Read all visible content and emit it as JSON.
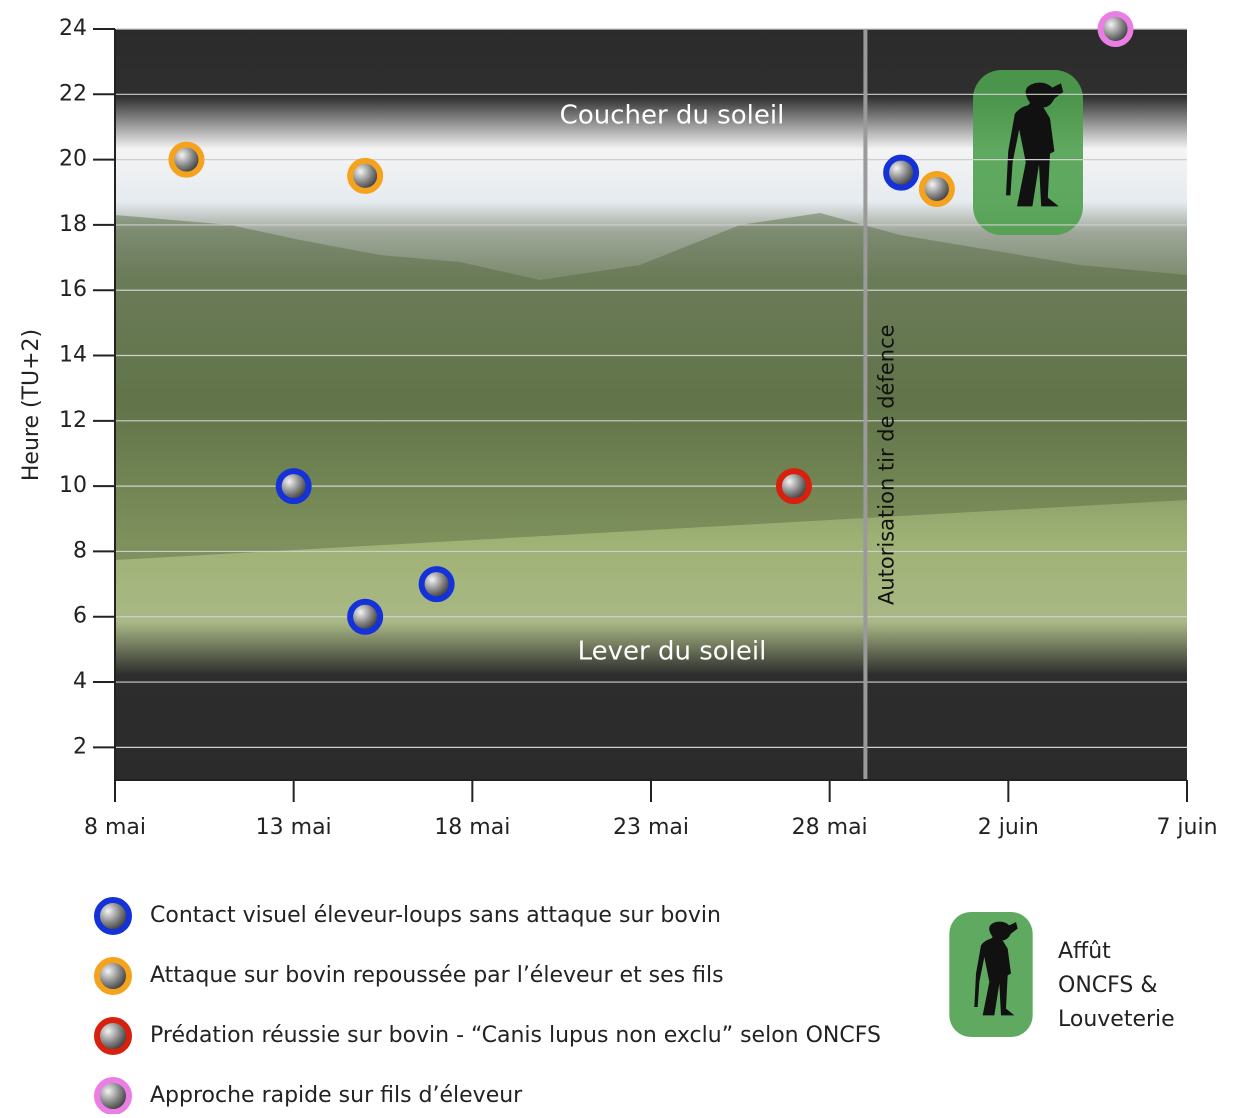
{
  "chart_data": {
    "type": "scatter",
    "y_label": "Heure (TU+2)",
    "xlim": [
      8,
      38
    ],
    "xticks": [
      {
        "value": 8,
        "label": "8 mai"
      },
      {
        "value": 13,
        "label": "13 mai"
      },
      {
        "value": 18,
        "label": "18 mai"
      },
      {
        "value": 23,
        "label": "23 mai"
      },
      {
        "value": 28,
        "label": "28 mai"
      },
      {
        "value": 33,
        "label": "2 juin"
      },
      {
        "value": 38,
        "label": "7 juin"
      }
    ],
    "ylim": [
      1,
      24
    ],
    "yticks": [
      2,
      4,
      6,
      8,
      10,
      12,
      14,
      16,
      18,
      20,
      22,
      24
    ],
    "grid": true,
    "series": [
      {
        "name": "Contact visuel éleveur-loups sans attaque sur bovin",
        "color": "#1432d8",
        "x": [
          13,
          15,
          17,
          30
        ],
        "values": [
          10,
          6,
          7,
          19.6
        ]
      },
      {
        "name": "Attaque sur bovin repoussée par l’éleveur et ses fils",
        "color": "#f5a21c",
        "x": [
          10,
          15,
          31
        ],
        "values": [
          20,
          19.5,
          19.1
        ]
      },
      {
        "name": "Prédation réussie sur bovin - “Canis lupus non exclu” selon ONCFS",
        "color": "#d8200e",
        "x": [
          27
        ],
        "values": [
          10
        ]
      },
      {
        "name": "Approche rapide sur fils d’éleveur",
        "color": "#ea7ee4",
        "x": [
          36
        ],
        "values": [
          24
        ]
      }
    ],
    "annotation": {
      "x": 29,
      "text": "Autorisation tir de défence"
    },
    "sunset_label": "Coucher du soleil",
    "sunrise_label": "Lever du soleil",
    "affut_label": "Affût ONCFS & Louveterie"
  }
}
